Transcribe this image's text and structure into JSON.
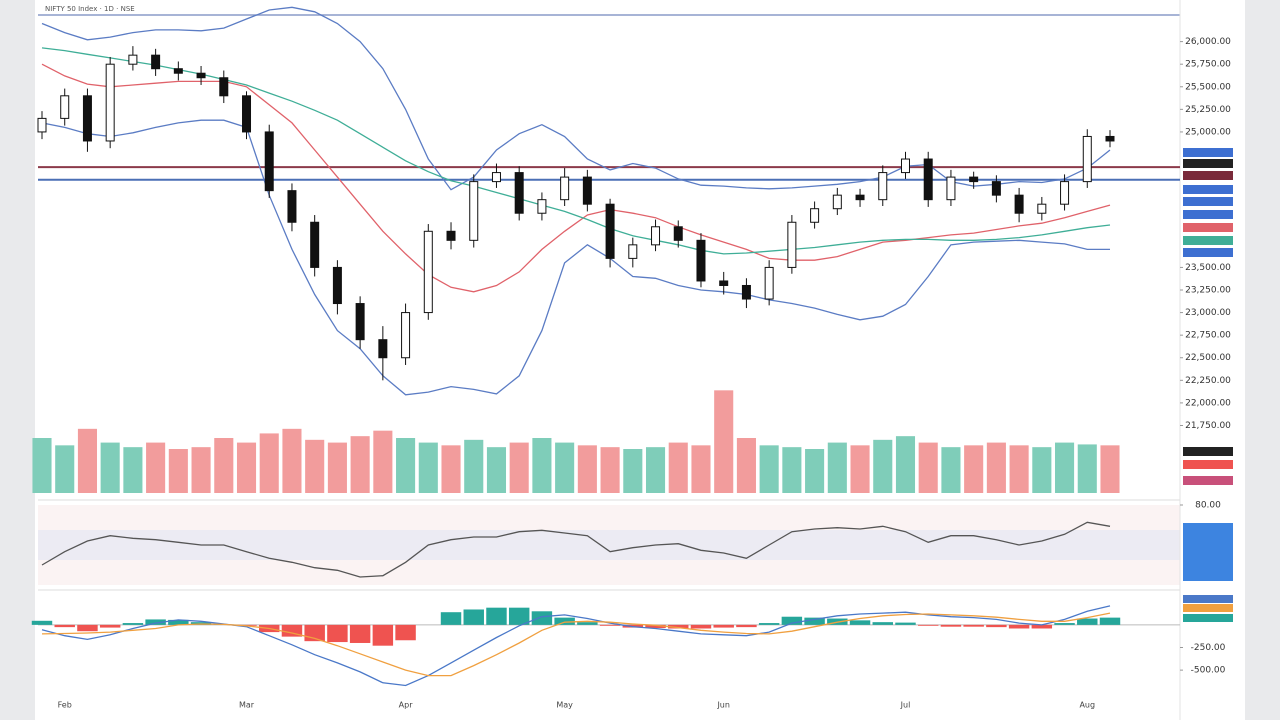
{
  "header": {
    "title": "NIFTY 50 Index · 1D · NSE"
  },
  "chart_data": [
    {
      "type": "candlestick",
      "categories": [
        null,
        "Feb",
        null,
        null,
        null,
        null,
        null,
        null,
        null,
        "Mar",
        null,
        null,
        null,
        null,
        null,
        null,
        "Apr",
        null,
        null,
        null,
        null,
        null,
        null,
        "May",
        null,
        null,
        null,
        null,
        null,
        null,
        "Jun",
        null,
        null,
        null,
        null,
        null,
        null,
        null,
        "Jul",
        null,
        null,
        null,
        null,
        null,
        null,
        null,
        "Aug",
        null
      ],
      "open": [
        25000,
        25150,
        25400,
        24900,
        25750,
        25850,
        25700,
        25650,
        25600,
        25400,
        25000,
        24350,
        24000,
        23500,
        23100,
        22700,
        22500,
        23000,
        23900,
        23800,
        24450,
        24550,
        24100,
        24250,
        24500,
        24200,
        23600,
        23750,
        23950,
        23800,
        23350,
        23300,
        23150,
        23500,
        24000,
        24150,
        24300,
        24250,
        24550,
        24700,
        24250,
        24500,
        24450,
        24300,
        24100,
        24200,
        24450,
        24950
      ],
      "high": [
        25230,
        25480,
        25480,
        25830,
        25950,
        25920,
        25780,
        25730,
        25680,
        25450,
        25080,
        24430,
        24080,
        23580,
        23180,
        22850,
        23100,
        23980,
        24000,
        24530,
        24650,
        24620,
        24330,
        24600,
        24580,
        24260,
        23830,
        24030,
        24020,
        23880,
        23450,
        23380,
        23580,
        24080,
        24230,
        24380,
        24370,
        24630,
        24780,
        24780,
        24580,
        24560,
        24520,
        24380,
        24280,
        24530,
        25030,
        25020
      ],
      "low": [
        24920,
        25070,
        24780,
        24820,
        25680,
        25620,
        25570,
        25520,
        25320,
        24920,
        24270,
        23900,
        23400,
        22980,
        22600,
        22250,
        22420,
        22920,
        23700,
        23720,
        24380,
        24020,
        24020,
        24180,
        24120,
        23500,
        23500,
        23680,
        23720,
        23280,
        23200,
        23050,
        23080,
        23430,
        23930,
        24080,
        24170,
        24180,
        24480,
        24170,
        24180,
        24370,
        24220,
        24000,
        24020,
        24130,
        24380,
        24830
      ],
      "close": [
        25150,
        25400,
        24900,
        25750,
        25850,
        25700,
        25650,
        25600,
        25400,
        25000,
        24350,
        24000,
        23500,
        23100,
        22700,
        22500,
        23000,
        23900,
        23800,
        24450,
        24550,
        24100,
        24250,
        24500,
        24200,
        23600,
        23750,
        23950,
        23800,
        23350,
        23300,
        23150,
        23500,
        24000,
        24150,
        24300,
        24250,
        24550,
        24700,
        24250,
        24500,
        24450,
        24300,
        24100,
        24200,
        24450,
        24950,
        24900
      ],
      "up_color": "#ffffff",
      "down_color": "#111111",
      "series": [
        {
          "color": "#5b7cc4",
          "values": [
            26200,
            26100,
            26020,
            26050,
            26100,
            26130,
            26130,
            26120,
            26150,
            26250,
            26350,
            26380,
            26330,
            26200,
            26000,
            25700,
            25250,
            24700,
            24360,
            24500,
            24800,
            24980,
            25080,
            24950,
            24700,
            24580,
            24650,
            24600,
            24480,
            24410,
            24400,
            24380,
            24370,
            24380,
            24400,
            24420,
            24450,
            24500,
            24620,
            24640,
            24450,
            24400,
            24420,
            24450,
            24440,
            24480,
            24600,
            24800
          ]
        },
        {
          "color": "#e0626a",
          "values": [
            25750,
            25620,
            25530,
            25500,
            25520,
            25540,
            25560,
            25560,
            25560,
            25500,
            25300,
            25100,
            24800,
            24500,
            24200,
            23900,
            23650,
            23420,
            23280,
            23230,
            23300,
            23450,
            23700,
            23900,
            24080,
            24140,
            24100,
            24050,
            23950,
            23860,
            23780,
            23700,
            23600,
            23580,
            23580,
            23620,
            23700,
            23780,
            23800,
            23830,
            23860,
            23880,
            23920,
            23960,
            23990,
            24050,
            24120,
            24190
          ]
        },
        {
          "color": "#5b7cc4",
          "values": [
            25100,
            25050,
            24980,
            24950,
            24990,
            25050,
            25100,
            25130,
            25130,
            25050,
            24300,
            23700,
            23200,
            22800,
            22600,
            22300,
            22090,
            22120,
            22180,
            22150,
            22100,
            22300,
            22800,
            23550,
            23750,
            23600,
            23400,
            23380,
            23300,
            23250,
            23230,
            23200,
            23140,
            23100,
            23050,
            22980,
            22920,
            22960,
            23090,
            23400,
            23750,
            23780,
            23790,
            23800,
            23780,
            23760,
            23700,
            23700
          ]
        },
        {
          "color": "#3fae97",
          "values": [
            25930,
            25900,
            25860,
            25820,
            25780,
            25740,
            25690,
            25640,
            25580,
            25520,
            25430,
            25340,
            25240,
            25130,
            24980,
            24830,
            24680,
            24560,
            24460,
            24400,
            24330,
            24260,
            24190,
            24120,
            24030,
            23930,
            23850,
            23800,
            23750,
            23690,
            23650,
            23660,
            23680,
            23700,
            23720,
            23750,
            23780,
            23800,
            23810,
            23810,
            23800,
            23800,
            23810,
            23830,
            23860,
            23900,
            23940,
            23970
          ]
        }
      ],
      "hlines": [
        {
          "value": 24470,
          "color": "#4a6fb5"
        },
        {
          "value": 24610,
          "color": "#8b3a4a"
        }
      ],
      "ylim": [
        21700,
        26350
      ],
      "yticks": [
        {
          "value": 26000,
          "label": "26,000.00"
        },
        {
          "value": 25750,
          "label": "25,750.00"
        },
        {
          "value": 25500,
          "label": "25,500.00"
        },
        {
          "value": 25250,
          "label": "25,250.00"
        },
        {
          "value": 25000,
          "label": "25,000.00"
        },
        {
          "value": 23500,
          "label": "23,500.00"
        },
        {
          "value": 23250,
          "label": "23,250.00"
        },
        {
          "value": 23000,
          "label": "23,000.00"
        },
        {
          "value": 22750,
          "label": "22,750.00"
        },
        {
          "value": 22500,
          "label": "22,500.00"
        },
        {
          "value": 22250,
          "label": "22,250.00"
        },
        {
          "value": 22000,
          "label": "22,000.00"
        },
        {
          "value": 21750,
          "label": "21,750.00"
        }
      ]
    },
    {
      "type": "volume",
      "values": [
        60,
        52,
        70,
        55,
        50,
        55,
        48,
        50,
        60,
        55,
        65,
        70,
        58,
        55,
        62,
        68,
        60,
        55,
        52,
        58,
        50,
        55,
        60,
        55,
        52,
        50,
        48,
        50,
        55,
        52,
        112,
        60,
        52,
        50,
        48,
        55,
        52,
        58,
        62,
        55,
        50,
        52,
        55,
        52,
        50,
        55,
        53,
        52
      ],
      "up_color": "#7fcdb9",
      "down_color": "#f29c9c",
      "ylim": [
        0,
        120
      ]
    },
    {
      "type": "line",
      "values": [
        35,
        45,
        53,
        57,
        55,
        54,
        52,
        50,
        50,
        45,
        40,
        37,
        33,
        31,
        26,
        27,
        37,
        50,
        54,
        56,
        56,
        60,
        61,
        59,
        57,
        45,
        48,
        50,
        51,
        46,
        44,
        40,
        50,
        60,
        62,
        63,
        62,
        64,
        60,
        52,
        57,
        57,
        54,
        50,
        53,
        58,
        67,
        64
      ],
      "color": "#555555",
      "ylim": [
        20,
        80
      ],
      "yticks": [
        {
          "value": 80,
          "label": "80.00"
        }
      ]
    },
    {
      "type": "macd",
      "series": [
        {
          "color": "#4a78c8",
          "values": [
            -55,
            -120,
            -160,
            -110,
            -40,
            20,
            55,
            40,
            10,
            -20,
            -120,
            -220,
            -330,
            -420,
            -520,
            -640,
            -670,
            -560,
            -420,
            -280,
            -140,
            -10,
            90,
            110,
            70,
            20,
            -20,
            -40,
            -70,
            -100,
            -110,
            -120,
            -80,
            20,
            60,
            100,
            120,
            130,
            140,
            110,
            90,
            80,
            60,
            20,
            0,
            60,
            150,
            210
          ]
        },
        {
          "color": "#f0a040",
          "values": [
            -100,
            -95,
            -90,
            -80,
            -60,
            -40,
            0,
            10,
            5,
            -10,
            -40,
            -90,
            -150,
            -230,
            -320,
            -410,
            -500,
            -560,
            -560,
            -450,
            -330,
            -200,
            -60,
            30,
            40,
            30,
            10,
            -5,
            -30,
            -60,
            -80,
            -95,
            -100,
            -70,
            -20,
            30,
            70,
            100,
            115,
            120,
            110,
            100,
            85,
            60,
            40,
            40,
            80,
            130
          ]
        }
      ],
      "histogram": [
        45,
        -25,
        -70,
        -30,
        20,
        60,
        55,
        30,
        5,
        -10,
        -80,
        -130,
        -180,
        -190,
        -200,
        -230,
        -170,
        0,
        140,
        170,
        190,
        190,
        150,
        80,
        30,
        -10,
        -30,
        -35,
        -40,
        -40,
        -30,
        -25,
        20,
        90,
        80,
        70,
        50,
        30,
        25,
        -10,
        -20,
        -20,
        -25,
        -40,
        -40,
        20,
        70,
        80
      ],
      "up_color": "#26a69a",
      "down_color": "#ef5350",
      "ylim": [
        -830,
        330
      ],
      "yticks": [
        {
          "value": -250,
          "label": "-250.00"
        },
        {
          "value": -500,
          "label": "-500.00"
        }
      ]
    }
  ]
}
